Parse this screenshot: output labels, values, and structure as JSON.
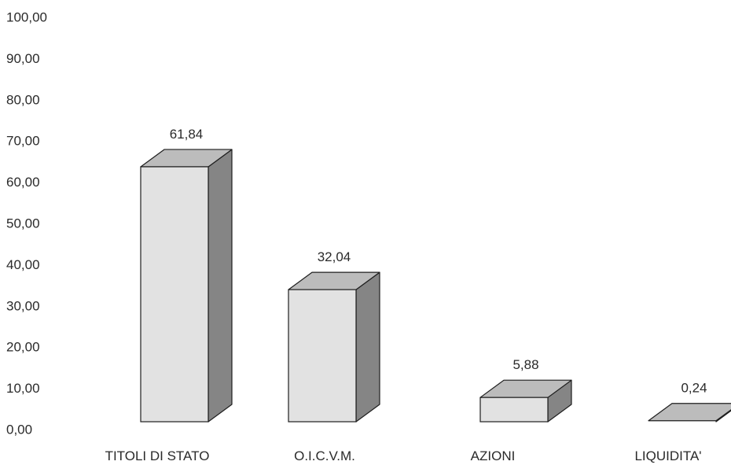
{
  "chart_data": {
    "type": "bar",
    "categories": [
      "TITOLI DI STATO",
      "O.I.C.V.M.",
      "AZIONI",
      "LIQUIDITA'"
    ],
    "values": [
      61.84,
      32.04,
      5.88,
      0.24
    ],
    "data_labels": [
      "61,84",
      "32,04",
      "5,88",
      "0,24"
    ],
    "ylim": [
      0,
      100
    ],
    "yticks": [
      "0,00",
      "10,00",
      "20,00",
      "30,00",
      "40,00",
      "50,00",
      "60,00",
      "70,00",
      "80,00",
      "90,00",
      "100,00"
    ],
    "grid": false,
    "legend": "none",
    "style": "3d-column",
    "colors": {
      "front": "#e2e2e2",
      "top": "#bcbcbc",
      "side": "#858585",
      "outline": "#1e1e1e",
      "text": "#2a2a2a"
    }
  }
}
